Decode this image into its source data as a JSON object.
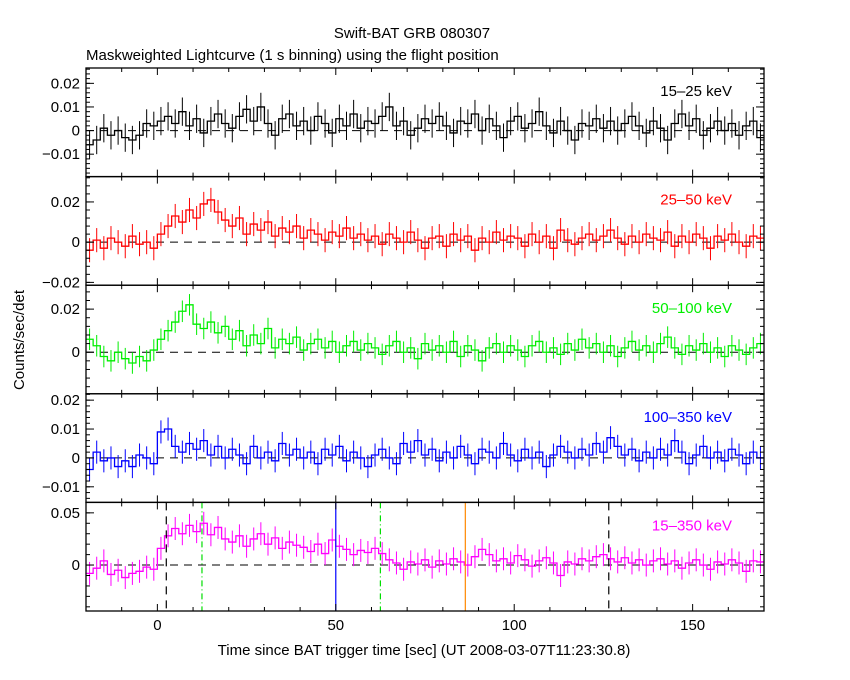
{
  "chart_data": {
    "type": "line",
    "title": "Swift-BAT GRB 080307",
    "subtitle": "Maskweighted Lightcurve (1 s binning) using the flight position",
    "xlabel": "Time since BAT trigger time [sec] (UT 2008-03-07T11:23:30.8)",
    "ylabel": "Counts/sec/det",
    "xlim": [
      -20,
      170
    ],
    "x_ticks": [
      0,
      50,
      100,
      150
    ],
    "x_start": -20,
    "bin_width": 2,
    "grid": false,
    "markers": [
      {
        "time": 2.5,
        "color": "#000000",
        "style": "dashed"
      },
      {
        "time": 12.5,
        "color": "#00dd00",
        "style": "dashdot"
      },
      {
        "time": 50,
        "color": "#0000ff",
        "style": "solid"
      },
      {
        "time": 62.5,
        "color": "#00dd00",
        "style": "dashdot"
      },
      {
        "time": 86.3,
        "color": "#ff8800",
        "style": "solid"
      },
      {
        "time": 126.5,
        "color": "#000000",
        "style": "dashed"
      }
    ],
    "panels": [
      {
        "name": "15-25 keV",
        "label": "15–25 keV",
        "color": "#000000",
        "ylim": [
          -0.0195,
          0.0265
        ],
        "y_ticks": [
          -0.01,
          0,
          0.01,
          0.02
        ],
        "y_tick_labels": [
          "−0.01",
          "0",
          "0.01",
          "0.02"
        ],
        "error": 0.006,
        "values": [
          -0.006,
          -0.004,
          0.001,
          -0.002,
          0.0,
          -0.003,
          -0.004,
          -0.002,
          0.003,
          0.002,
          0.004,
          0.006,
          0.003,
          0.008,
          0.002,
          0.005,
          -0.001,
          0.004,
          0.007,
          0.003,
          0.001,
          0.006,
          0.009,
          0.004,
          0.01,
          0.003,
          -0.002,
          0.005,
          0.007,
          0.002,
          0.004,
          0.0,
          0.006,
          0.003,
          -0.001,
          0.005,
          0.002,
          0.007,
          0.001,
          0.004,
          0.003,
          0.006,
          0.01,
          0.002,
          0.004,
          -0.002,
          0.001,
          0.005,
          0.003,
          0.006,
          0.002,
          -0.001,
          0.004,
          0.003,
          0.007,
          0.0,
          0.005,
          0.002,
          -0.003,
          0.004,
          0.006,
          0.001,
          0.003,
          0.008,
          0.002,
          -0.001,
          0.004,
          0.0,
          -0.004,
          0.003,
          0.002,
          0.005,
          0.001,
          0.004,
          0.0,
          0.003,
          0.006,
          0.002,
          -0.001,
          0.004,
          0.001,
          -0.004,
          0.003,
          0.007,
          0.002,
          0.005,
          -0.002,
          0.001,
          0.004,
          0.0,
          0.003,
          -0.002,
          0.002,
          0.004,
          -0.003
        ]
      },
      {
        "name": "25-50 keV",
        "label": "25–50 keV",
        "color": "#ff0000",
        "ylim": [
          -0.0214,
          0.0326
        ],
        "y_ticks": [
          -0.02,
          0,
          0.02
        ],
        "y_tick_labels": [
          "−0.02",
          "0",
          "0.02"
        ],
        "error": 0.006,
        "values": [
          -0.004,
          0.001,
          -0.003,
          0.002,
          0.0,
          -0.002,
          0.003,
          -0.001,
          0.0,
          -0.003,
          0.004,
          0.008,
          0.013,
          0.01,
          0.016,
          0.012,
          0.019,
          0.021,
          0.015,
          0.011,
          0.008,
          0.012,
          0.004,
          0.009,
          0.006,
          0.01,
          0.003,
          0.007,
          0.005,
          0.008,
          0.002,
          0.006,
          0.004,
          0.001,
          0.005,
          0.003,
          0.007,
          0.002,
          0.004,
          0.001,
          0.003,
          -0.001,
          0.004,
          0.002,
          0.0,
          0.005,
          0.001,
          -0.003,
          0.002,
          0.003,
          -0.002,
          0.004,
          0.001,
          0.003,
          -0.004,
          0.002,
          0.0,
          0.005,
          0.001,
          0.003,
          0.002,
          -0.002,
          0.004,
          0.0,
          0.003,
          -0.003,
          0.006,
          0.001,
          -0.001,
          0.002,
          0.004,
          0.001,
          0.003,
          0.006,
          0.002,
          -0.001,
          0.003,
          0.0,
          0.004,
          0.002,
          0.001,
          0.005,
          -0.002,
          0.003,
          0.0,
          0.004,
          0.002,
          -0.003,
          0.003,
          0.001,
          0.004,
          0.0,
          -0.002,
          0.003,
          0.002
        ]
      },
      {
        "name": "50-100 keV",
        "label": "50–100 keV",
        "color": "#00ee00",
        "ylim": [
          -0.0193,
          0.0311
        ],
        "y_ticks": [
          0,
          0.02
        ],
        "y_tick_labels": [
          "0",
          "0.02"
        ],
        "error": 0.005,
        "values": [
          0.006,
          0.003,
          -0.002,
          -0.004,
          0.0,
          -0.003,
          -0.005,
          -0.002,
          -0.004,
          0.001,
          0.006,
          0.01,
          0.014,
          0.019,
          0.022,
          0.013,
          0.011,
          0.014,
          0.009,
          0.012,
          0.006,
          0.01,
          0.003,
          0.008,
          0.004,
          0.011,
          0.002,
          0.006,
          0.004,
          0.007,
          0.001,
          0.004,
          0.006,
          0.002,
          0.005,
          0.0,
          0.003,
          0.005,
          0.001,
          0.004,
          0.002,
          -0.001,
          0.003,
          0.005,
          0.0,
          0.002,
          -0.003,
          0.004,
          0.001,
          0.003,
          0.0,
          0.005,
          -0.002,
          0.003,
          0.001,
          -0.004,
          0.002,
          0.004,
          0.0,
          0.003,
          0.001,
          -0.002,
          0.003,
          0.005,
          0.0,
          0.002,
          -0.001,
          0.004,
          0.001,
          0.006,
          0.002,
          0.004,
          0.0,
          0.003,
          -0.002,
          0.002,
          0.005,
          0.001,
          0.003,
          0.0,
          0.004,
          0.007,
          0.002,
          -0.001,
          0.003,
          0.001,
          0.004,
          0.0,
          0.002,
          -0.002,
          0.003,
          0.001,
          -0.001,
          0.002,
          0.004
        ]
      },
      {
        "name": "100-350 keV",
        "label": "100–350 keV",
        "color": "#0000ff",
        "ylim": [
          -0.0154,
          0.0222
        ],
        "y_ticks": [
          -0.01,
          0,
          0.01,
          0.02
        ],
        "y_tick_labels": [
          "−0.01",
          "0",
          "0.01",
          "0.02"
        ],
        "error": 0.004,
        "values": [
          -0.004,
          0.002,
          -0.001,
          0.0,
          -0.003,
          -0.001,
          -0.003,
          0.001,
          0.0,
          -0.002,
          0.009,
          0.01,
          0.004,
          0.002,
          0.005,
          0.003,
          0.006,
          0.001,
          0.004,
          0.0,
          0.003,
          0.001,
          -0.002,
          0.004,
          0.0,
          0.002,
          -0.001,
          0.005,
          0.001,
          0.003,
          0.0,
          0.002,
          -0.002,
          0.003,
          0.001,
          0.004,
          -0.001,
          0.002,
          0.0,
          -0.003,
          0.001,
          0.003,
          0.0,
          -0.002,
          0.005,
          0.002,
          0.006,
          0.001,
          0.003,
          -0.001,
          0.002,
          0.0,
          0.004,
          0.001,
          -0.002,
          0.003,
          0.002,
          0.0,
          0.005,
          0.001,
          -0.001,
          0.003,
          0.0,
          0.002,
          -0.003,
          0.001,
          0.004,
          0.002,
          0.0,
          0.003,
          0.001,
          0.005,
          0.002,
          0.007,
          0.004,
          0.001,
          0.003,
          -0.001,
          0.002,
          0.0,
          0.003,
          0.001,
          0.006,
          0.002,
          -0.002,
          0.001,
          0.004,
          0.0,
          0.002,
          -0.001,
          0.003,
          0.001,
          -0.002,
          0.002,
          0.0
        ]
      },
      {
        "name": "15-350 keV",
        "label": "15–350 keV",
        "color": "#ff00ff",
        "ylim": [
          -0.044,
          0.06
        ],
        "y_ticks": [
          0,
          0.05
        ],
        "y_tick_labels": [
          "0",
          "0.05"
        ],
        "error": 0.011,
        "values": [
          -0.008,
          -0.003,
          0.004,
          -0.009,
          -0.005,
          -0.012,
          -0.008,
          -0.006,
          -0.002,
          -0.004,
          0.016,
          0.028,
          0.035,
          0.03,
          0.038,
          0.032,
          0.04,
          0.029,
          0.036,
          0.025,
          0.022,
          0.028,
          0.018,
          0.025,
          0.03,
          0.02,
          0.026,
          0.016,
          0.022,
          0.019,
          0.017,
          0.013,
          0.02,
          0.011,
          0.024,
          0.018,
          0.015,
          0.01,
          0.014,
          0.012,
          0.016,
          0.011,
          0.005,
          0.002,
          -0.004,
          0.003,
          0.001,
          0.005,
          -0.002,
          0.004,
          0.001,
          0.006,
          0.003,
          0.0,
          0.008,
          0.015,
          0.01,
          0.004,
          0.006,
          0.002,
          0.009,
          0.005,
          -0.001,
          0.004,
          0.007,
          0.002,
          -0.01,
          0.003,
          0.001,
          0.006,
          0.004,
          0.008,
          0.01,
          0.006,
          0.003,
          0.007,
          0.002,
          0.005,
          0.0,
          0.004,
          0.006,
          0.001,
          0.004,
          -0.003,
          0.002,
          0.005,
          0.0,
          -0.004,
          0.003,
          0.001,
          0.005,
          0.002,
          -0.006,
          0.004,
          0.003
        ]
      }
    ]
  }
}
